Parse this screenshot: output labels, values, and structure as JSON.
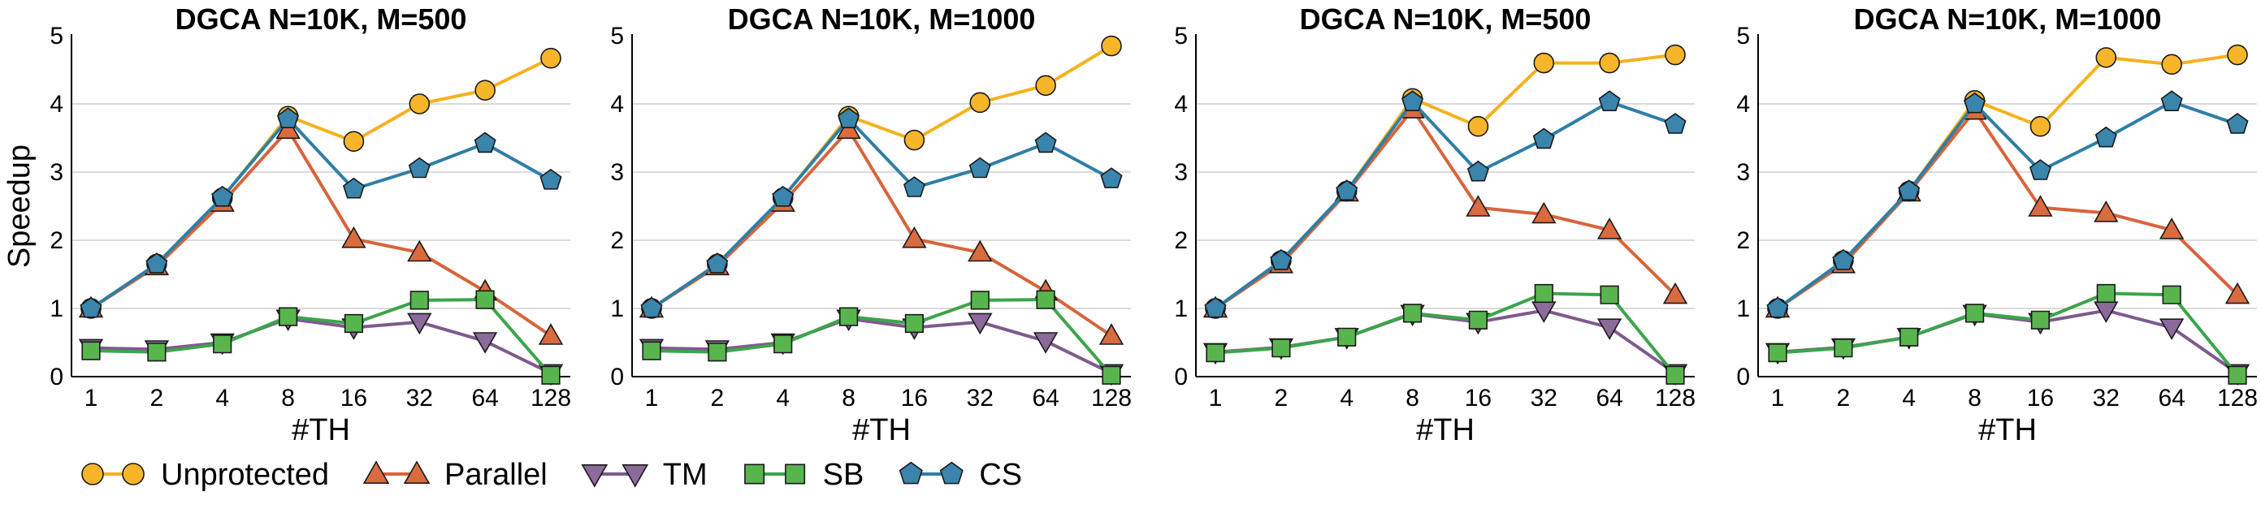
{
  "series_styles": [
    {
      "key": "Unprotected",
      "marker": "circle",
      "line_color": "#F5B21B",
      "fill": "#F7B52A"
    },
    {
      "key": "Parallel",
      "marker": "triangle-up",
      "line_color": "#D8643A",
      "fill": "#D96B3F"
    },
    {
      "key": "TM",
      "marker": "triangle-down",
      "line_color": "#7F5A8E",
      "fill": "#8C6A9C"
    },
    {
      "key": "SB",
      "marker": "square",
      "line_color": "#3BA54A",
      "fill": "#58B54E"
    },
    {
      "key": "CS",
      "marker": "pentagon",
      "line_color": "#2E7FA6",
      "fill": "#3A85AC"
    }
  ],
  "legend": {
    "placement": "bottom",
    "entries": [
      "Unprotected",
      "Parallel",
      "TM",
      "SB",
      "CS"
    ]
  },
  "chart_data": [
    {
      "type": "line",
      "title": "DGCA N=10K, M=500",
      "xlabel": "#TH",
      "ylabel": "Speedup",
      "x": [
        "1",
        "2",
        "4",
        "8",
        "16",
        "32",
        "64",
        "128"
      ],
      "ylim": [
        0,
        5
      ],
      "yticks": [
        "0",
        "1",
        "2",
        "3",
        "4",
        "5"
      ],
      "grid": "horizontal",
      "series": [
        {
          "name": "Unprotected",
          "values": [
            1.0,
            1.65,
            2.62,
            3.82,
            3.45,
            4.0,
            4.2,
            4.67
          ]
        },
        {
          "name": "Parallel",
          "values": [
            1.0,
            1.62,
            2.55,
            3.62,
            2.02,
            1.82,
            1.25,
            0.6
          ]
        },
        {
          "name": "TM",
          "values": [
            0.42,
            0.4,
            0.5,
            0.85,
            0.72,
            0.8,
            0.52,
            0.05
          ]
        },
        {
          "name": "SB",
          "values": [
            0.38,
            0.36,
            0.48,
            0.88,
            0.78,
            1.12,
            1.13,
            0.02
          ]
        },
        {
          "name": "CS",
          "values": [
            1.0,
            1.65,
            2.63,
            3.78,
            2.75,
            3.05,
            3.42,
            2.88
          ]
        }
      ]
    },
    {
      "type": "line",
      "title": "DGCA N=10K, M=1000",
      "xlabel": "#TH",
      "ylabel": "",
      "x": [
        "1",
        "2",
        "4",
        "8",
        "16",
        "32",
        "64",
        "128"
      ],
      "ylim": [
        0,
        5
      ],
      "yticks": [
        "0",
        "1",
        "2",
        "3",
        "4",
        "5"
      ],
      "grid": "horizontal",
      "series": [
        {
          "name": "Unprotected",
          "values": [
            1.0,
            1.65,
            2.62,
            3.82,
            3.47,
            4.02,
            4.27,
            4.85
          ]
        },
        {
          "name": "Parallel",
          "values": [
            1.0,
            1.62,
            2.55,
            3.62,
            2.02,
            1.82,
            1.25,
            0.6
          ]
        },
        {
          "name": "TM",
          "values": [
            0.42,
            0.4,
            0.5,
            0.85,
            0.72,
            0.8,
            0.52,
            0.05
          ]
        },
        {
          "name": "SB",
          "values": [
            0.38,
            0.36,
            0.48,
            0.88,
            0.78,
            1.12,
            1.13,
            0.02
          ]
        },
        {
          "name": "CS",
          "values": [
            1.0,
            1.65,
            2.63,
            3.78,
            2.77,
            3.05,
            3.42,
            2.9
          ]
        }
      ]
    },
    {
      "type": "line",
      "title": "DGCA N=10K, M=500",
      "xlabel": "#TH",
      "ylabel": "",
      "x": [
        "1",
        "2",
        "4",
        "8",
        "16",
        "32",
        "64",
        "128"
      ],
      "ylim": [
        0,
        5
      ],
      "yticks": [
        "0",
        "1",
        "2",
        "3",
        "4",
        "5"
      ],
      "grid": "horizontal",
      "series": [
        {
          "name": "Unprotected",
          "values": [
            1.0,
            1.7,
            2.72,
            4.08,
            3.67,
            4.6,
            4.6,
            4.72
          ]
        },
        {
          "name": "Parallel",
          "values": [
            1.0,
            1.65,
            2.7,
            3.92,
            2.48,
            2.38,
            2.15,
            1.2
          ]
        },
        {
          "name": "TM",
          "values": [
            0.36,
            0.43,
            0.58,
            0.92,
            0.8,
            0.97,
            0.72,
            0.05
          ]
        },
        {
          "name": "SB",
          "values": [
            0.35,
            0.42,
            0.58,
            0.93,
            0.83,
            1.22,
            1.2,
            0.02
          ]
        },
        {
          "name": "CS",
          "values": [
            1.0,
            1.7,
            2.72,
            4.03,
            3.0,
            3.48,
            4.03,
            3.7
          ]
        }
      ]
    },
    {
      "type": "line",
      "title": "DGCA N=10K, M=1000",
      "xlabel": "#TH",
      "ylabel": "",
      "x": [
        "1",
        "2",
        "4",
        "8",
        "16",
        "32",
        "64",
        "128"
      ],
      "ylim": [
        0,
        5
      ],
      "yticks": [
        "0",
        "1",
        "2",
        "3",
        "4",
        "5"
      ],
      "grid": "horizontal",
      "series": [
        {
          "name": "Unprotected",
          "values": [
            1.0,
            1.7,
            2.72,
            4.05,
            3.67,
            4.68,
            4.58,
            4.72
          ]
        },
        {
          "name": "Parallel",
          "values": [
            1.0,
            1.65,
            2.7,
            3.9,
            2.48,
            2.4,
            2.15,
            1.2
          ]
        },
        {
          "name": "TM",
          "values": [
            0.36,
            0.43,
            0.58,
            0.92,
            0.8,
            0.97,
            0.72,
            0.05
          ]
        },
        {
          "name": "SB",
          "values": [
            0.35,
            0.42,
            0.58,
            0.93,
            0.83,
            1.22,
            1.2,
            0.02
          ]
        },
        {
          "name": "CS",
          "values": [
            1.0,
            1.7,
            2.72,
            4.0,
            3.02,
            3.5,
            4.03,
            3.7
          ]
        }
      ]
    }
  ]
}
